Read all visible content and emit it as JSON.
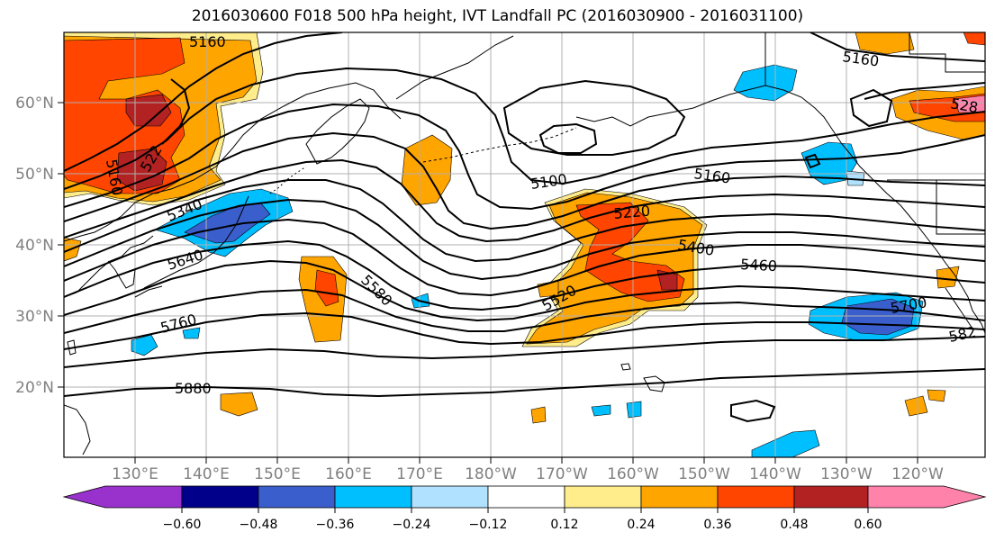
{
  "title": "2016030600 F018 500 hPa height, IVT Landfall PC (2016030900 - 2016031100)",
  "lat_labels": [
    "60°N",
    "50°N",
    "40°N",
    "30°N",
    "20°N"
  ],
  "lon_labels": [
    "130°E",
    "140°E",
    "150°E",
    "160°E",
    "170°E",
    "180°W",
    "170°W",
    "160°W",
    "150°W",
    "140°W",
    "130°W",
    "120°W"
  ],
  "colorbar": {
    "ticks": [
      "−0.60",
      "−0.48",
      "−0.36",
      "−0.24",
      "−0.12",
      "0.12",
      "0.24",
      "0.36",
      "0.48",
      "0.60"
    ],
    "colors": [
      "#9932cc",
      "#00008b",
      "#3a5fcd",
      "#00bfff",
      "#b0e2ff",
      "#ffffff",
      "#ffec8b",
      "#ffa500",
      "#ff4500",
      "#b22222",
      "#ff82ab"
    ]
  },
  "contour_labels": [
    {
      "text": "5160",
      "name": "contour-label-5160-nw"
    },
    {
      "text": "5160",
      "name": "contour-label-5160-west"
    },
    {
      "text": "522",
      "name": "contour-label-522-west"
    },
    {
      "text": "5340",
      "name": "contour-label-5340"
    },
    {
      "text": "5640",
      "name": "contour-label-5640"
    },
    {
      "text": "5760",
      "name": "contour-label-5760"
    },
    {
      "text": "5880",
      "name": "contour-label-5880"
    },
    {
      "text": "5580",
      "name": "contour-label-5580"
    },
    {
      "text": "5100",
      "name": "contour-label-5100"
    },
    {
      "text": "5160",
      "name": "contour-label-5160-center"
    },
    {
      "text": "5220",
      "name": "contour-label-5220-upper"
    },
    {
      "text": "5400",
      "name": "contour-label-5400"
    },
    {
      "text": "5460",
      "name": "contour-label-5460"
    },
    {
      "text": "5520",
      "name": "contour-label-5520"
    },
    {
      "text": "5700",
      "name": "contour-label-5700"
    },
    {
      "text": "582",
      "name": "contour-label-582-east"
    },
    {
      "text": "5160",
      "name": "contour-label-5160-ne"
    },
    {
      "text": "528",
      "name": "contour-label-528-ne"
    }
  ]
}
